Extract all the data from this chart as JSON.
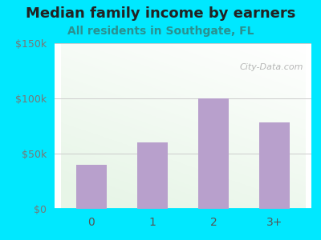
{
  "title": "Median family income by earners",
  "subtitle": "All residents in Southgate, FL",
  "categories": [
    "0",
    "1",
    "2",
    "3+"
  ],
  "values": [
    40000,
    60000,
    100000,
    78000
  ],
  "bar_color": "#b8a0cc",
  "title_fontsize": 13,
  "subtitle_fontsize": 10,
  "subtitle_color": "#2a9090",
  "title_color": "#222222",
  "background_outer": "#00e8ff",
  "ylim": [
    0,
    150000
  ],
  "yticks": [
    0,
    50000,
    100000,
    150000
  ],
  "ytick_labels": [
    "$0",
    "$50k",
    "$100k",
    "$150k"
  ],
  "ytick_color": "#777777",
  "xtick_color": "#555555",
  "watermark": "City-Data.com",
  "watermark_color": "#aaaaaa",
  "grid_color": "#cccccc",
  "plot_bg_left": "#d8eedd",
  "plot_bg_right": "#f8fff8"
}
